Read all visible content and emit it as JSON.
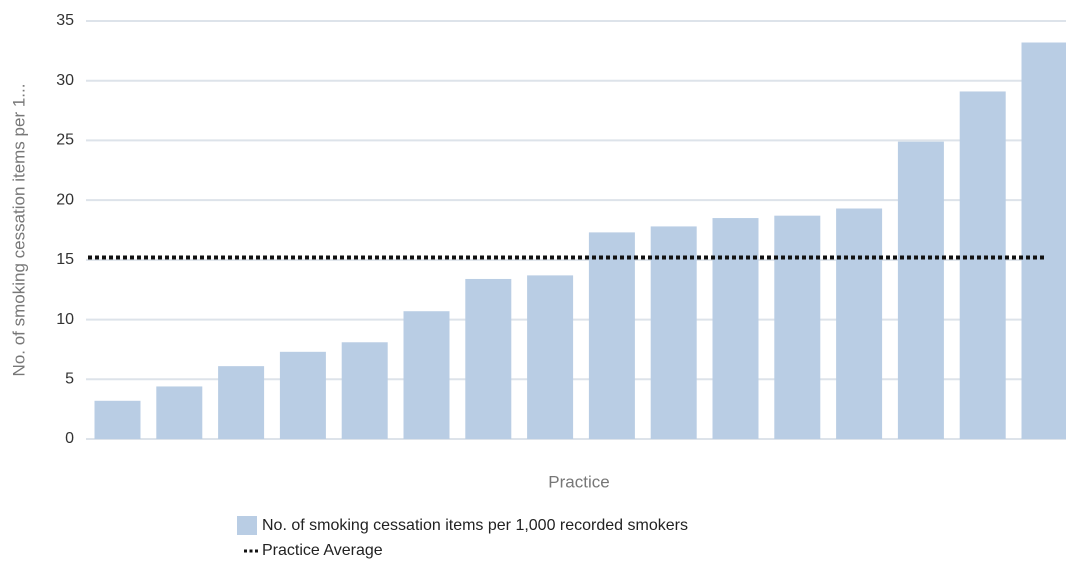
{
  "chart_data": {
    "type": "bar",
    "y_label": "No. of smoking cessation items per 1...",
    "x_label": "Practice",
    "categories": [
      null,
      null,
      null,
      null,
      null,
      null,
      null,
      null,
      null,
      null,
      null,
      null,
      null,
      null,
      null,
      null
    ],
    "series": [
      {
        "name": "No. of smoking cessation items per 1,000 recorded smokers",
        "color": "#b9cde4",
        "values": [
          3.2,
          4.4,
          6.1,
          7.3,
          8.1,
          10.7,
          13.4,
          13.7,
          17.3,
          17.8,
          18.5,
          18.7,
          19.3,
          24.9,
          29.1,
          33.2
        ]
      }
    ],
    "average_line": {
      "name": "Practice Average",
      "value": 15.2,
      "color": "#111111",
      "style": "dotted"
    },
    "ylim": [
      0,
      35
    ],
    "yticks": [
      0,
      5,
      10,
      15,
      20,
      25,
      30,
      35
    ],
    "grid": true
  }
}
